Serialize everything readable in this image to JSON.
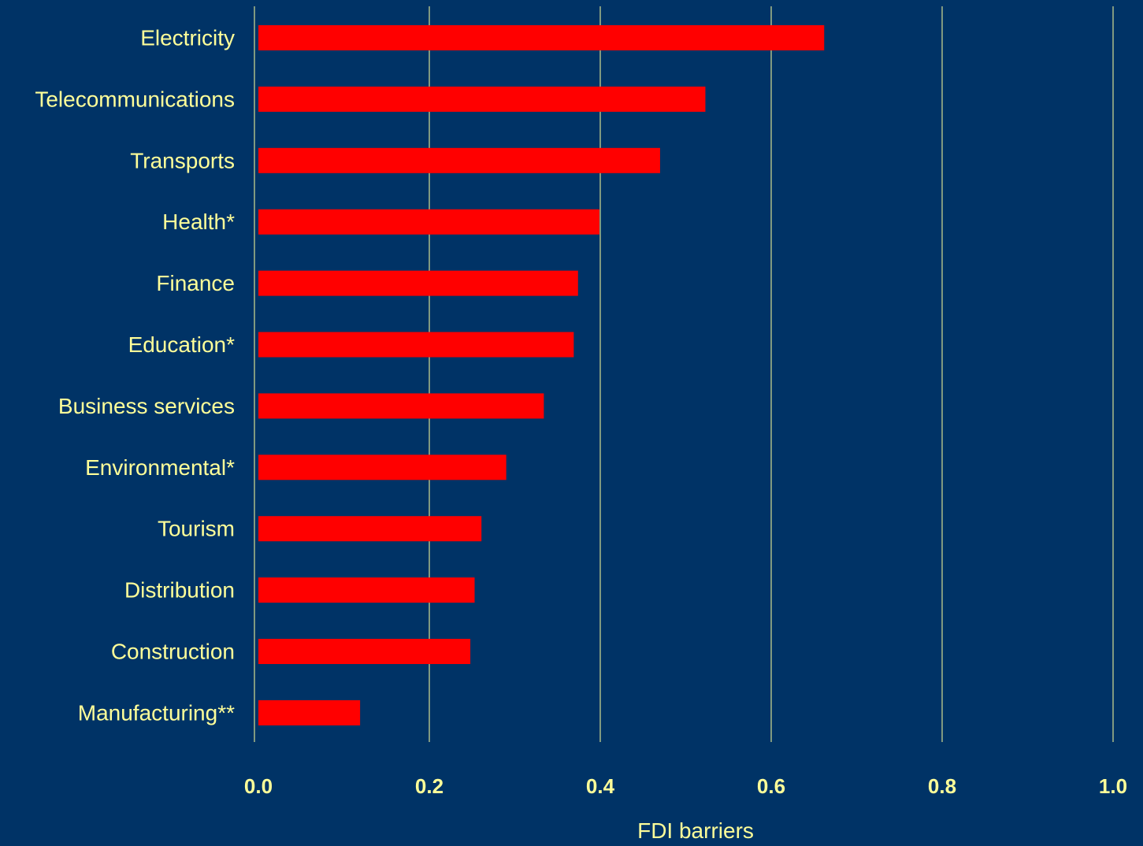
{
  "chart_data": {
    "type": "bar",
    "orientation": "horizontal",
    "categories": [
      "Electricity",
      "Telecommunications",
      "Transports",
      "Health*",
      "Finance",
      "Education*",
      "Business services",
      "Environmental*",
      "Tourism",
      "Distribution",
      "Construction",
      "Manufacturing**"
    ],
    "values": [
      0.662,
      0.523,
      0.47,
      0.399,
      0.374,
      0.369,
      0.334,
      0.29,
      0.261,
      0.253,
      0.248,
      0.119
    ],
    "xlabel": "FDI barriers",
    "ylabel": "",
    "title": "",
    "xlim": [
      0,
      1.0
    ],
    "xticks": [
      "0.0",
      "0.2",
      "0.4",
      "0.6",
      "0.8",
      "1.0"
    ],
    "grid": "vertical",
    "colors": {
      "background": "#003366",
      "bar": "#FF0000",
      "text": "#FFFF99",
      "grid": "#FFFF99"
    }
  }
}
